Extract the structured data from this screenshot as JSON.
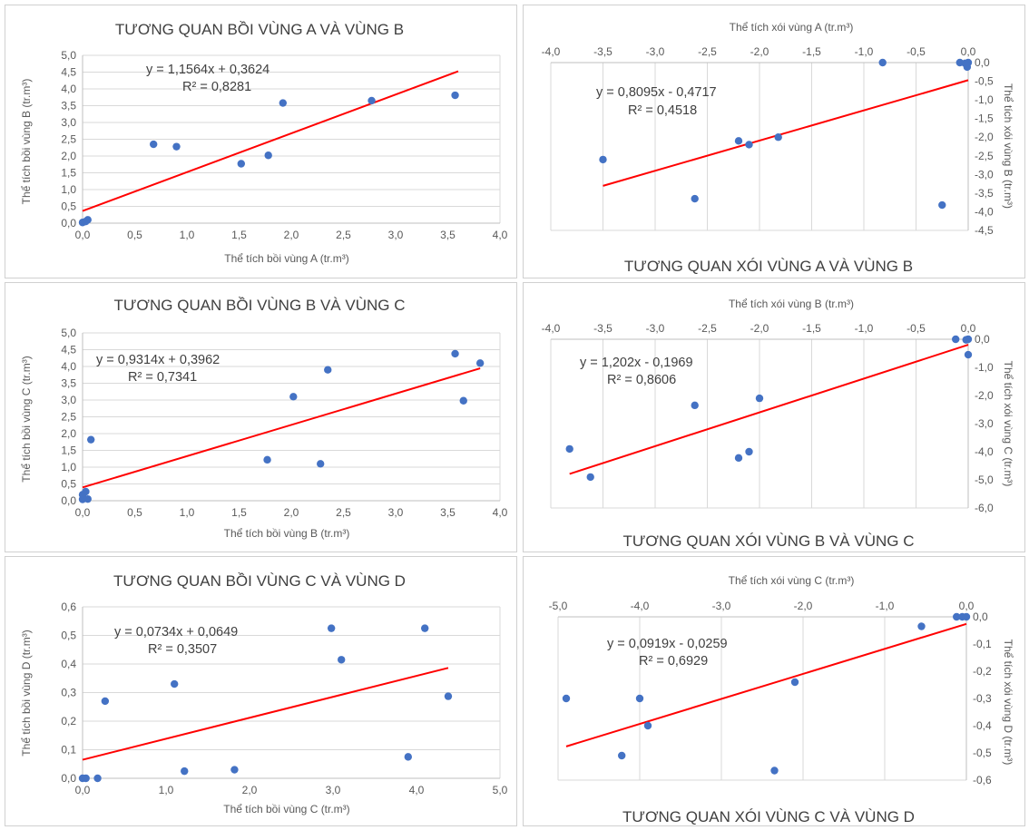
{
  "colors": {
    "point": "#4472c4",
    "trendline": "#ff0000",
    "grid": "#d9d9d9",
    "axis_text": "#595959",
    "title_text": "#404040"
  },
  "chart_data": [
    {
      "type": "scatter",
      "title": "TƯƠNG QUAN BỒI VÙNG A VÀ VÙNG B",
      "xlabel": "Thể tích bồi vùng A (tr.m³)",
      "ylabel": "Thể tích bồi vùng B (tr.m³)",
      "xlim": [
        0,
        4
      ],
      "ylim": [
        0,
        5
      ],
      "xticks": [
        0,
        0.5,
        1,
        1.5,
        2,
        2.5,
        3,
        3.5,
        4
      ],
      "xtick_labels": [
        "0,0",
        "0,5",
        "1,0",
        "1,5",
        "2,0",
        "2,5",
        "3,0",
        "3,5",
        "4,0"
      ],
      "yticks": [
        0,
        0.5,
        1,
        1.5,
        2,
        2.5,
        3,
        3.5,
        4,
        4.5,
        5
      ],
      "ytick_labels": [
        "0,0",
        "0,5",
        "1,0",
        "1,5",
        "2,0",
        "2,5",
        "3,0",
        "3,5",
        "4,0",
        "4,5",
        "5,0"
      ],
      "grid": "horizontal",
      "points": [
        [
          0.0,
          0.02
        ],
        [
          0.03,
          0.05
        ],
        [
          0.05,
          0.1
        ],
        [
          0.68,
          2.35
        ],
        [
          0.9,
          2.28
        ],
        [
          1.52,
          1.77
        ],
        [
          1.78,
          2.02
        ],
        [
          1.92,
          3.58
        ],
        [
          2.77,
          3.65
        ],
        [
          3.57,
          3.81
        ]
      ],
      "trendline": {
        "slope": 1.1564,
        "intercept": 0.3624,
        "x_range": [
          0,
          3.6
        ]
      },
      "equation": "y = 1,1564x + 0,3624",
      "r2": "R² = 0,8281"
    },
    {
      "type": "scatter",
      "title": "TƯƠNG QUAN XÓI VÙNG A VÀ VÙNG B",
      "xlabel": "Thể tích xói vùng A (tr.m³)",
      "ylabel": "Thể tích xói vùng B (tr.m³)",
      "xlim": [
        -4,
        0
      ],
      "ylim": [
        -4.5,
        0
      ],
      "xticks": [
        -4,
        -3.5,
        -3,
        -2.5,
        -2,
        -1.5,
        -1,
        -0.5,
        0
      ],
      "xtick_labels": [
        "-4,0",
        "-3,5",
        "-3,0",
        "-2,5",
        "-2,0",
        "-1,5",
        "-1,0",
        "-0,5",
        "0,0"
      ],
      "yticks": [
        0,
        -0.5,
        -1,
        -1.5,
        -2,
        -2.5,
        -3,
        -3.5,
        -4,
        -4.5
      ],
      "ytick_labels": [
        "0,0",
        "-0,5",
        "-1,0",
        "-1,5",
        "-2,0",
        "-2,5",
        "-3,0",
        "-3,5",
        "-4,0",
        "-4,5"
      ],
      "grid": "vertical",
      "points": [
        [
          -3.5,
          -2.6
        ],
        [
          -2.62,
          -3.65
        ],
        [
          -2.2,
          -2.1
        ],
        [
          -2.1,
          -2.2
        ],
        [
          -1.82,
          -2.0
        ],
        [
          -0.82,
          0.0
        ],
        [
          -0.25,
          -3.82
        ],
        [
          -0.08,
          0.0
        ],
        [
          -0.03,
          -0.02
        ],
        [
          -0.01,
          -0.12
        ],
        [
          0.0,
          0.0
        ]
      ],
      "trendline": {
        "slope": 0.8095,
        "intercept": -0.4717,
        "x_range": [
          -3.5,
          0
        ]
      },
      "equation": "y = 0,8095x - 0,4717",
      "r2": "R² = 0,4518"
    },
    {
      "type": "scatter",
      "title": "TƯƠNG QUAN BỒI VÙNG B VÀ VÙNG C",
      "xlabel": "Thể tích bồi vùng B (tr.m³)",
      "ylabel": "Thể tích bồi vùng C (tr.m³)",
      "xlim": [
        0,
        4
      ],
      "ylim": [
        0,
        5
      ],
      "xticks": [
        0,
        0.5,
        1,
        1.5,
        2,
        2.5,
        3,
        3.5,
        4
      ],
      "xtick_labels": [
        "0,0",
        "0,5",
        "1,0",
        "1,5",
        "2,0",
        "2,5",
        "3,0",
        "3,5",
        "4,0"
      ],
      "yticks": [
        0,
        0.5,
        1,
        1.5,
        2,
        2.5,
        3,
        3.5,
        4,
        4.5,
        5
      ],
      "ytick_labels": [
        "0,0",
        "0,5",
        "1,0",
        "1,5",
        "2,0",
        "2,5",
        "3,0",
        "3,5",
        "4,0",
        "4,5",
        "5,0"
      ],
      "grid": "horizontal",
      "points": [
        [
          0.0,
          0.04
        ],
        [
          0.0,
          0.18
        ],
        [
          0.03,
          0.27
        ],
        [
          0.05,
          0.05
        ],
        [
          0.08,
          1.82
        ],
        [
          1.77,
          1.22
        ],
        [
          2.02,
          3.1
        ],
        [
          2.28,
          1.1
        ],
        [
          2.35,
          3.9
        ],
        [
          3.57,
          4.38
        ],
        [
          3.65,
          2.98
        ],
        [
          3.81,
          4.1
        ]
      ],
      "trendline": {
        "slope": 0.9314,
        "intercept": 0.3962,
        "x_range": [
          0,
          3.81
        ]
      },
      "equation": "y = 0,9314x + 0,3962",
      "r2": "R² = 0,7341"
    },
    {
      "type": "scatter",
      "title": "TƯƠNG QUAN XÓI VÙNG B VÀ VÙNG C",
      "xlabel": "Thể tích xói vùng B (tr.m³)",
      "ylabel": "Thể tích xói vùng C (tr.m³)",
      "xlim": [
        -4,
        0
      ],
      "ylim": [
        -6,
        0
      ],
      "xticks": [
        -4,
        -3.5,
        -3,
        -2.5,
        -2,
        -1.5,
        -1,
        -0.5,
        0
      ],
      "xtick_labels": [
        "-4,0",
        "-3,5",
        "-3,0",
        "-2,5",
        "-2,0",
        "-1,5",
        "-1,0",
        "-0,5",
        "0,0"
      ],
      "yticks": [
        0,
        -1,
        -2,
        -3,
        -4,
        -5,
        -6
      ],
      "ytick_labels": [
        "0,0",
        "-1,0",
        "-2,0",
        "-3,0",
        "-4,0",
        "-5,0",
        "-6,0"
      ],
      "grid": "vertical",
      "points": [
        [
          -3.82,
          -3.9
        ],
        [
          -3.62,
          -4.9
        ],
        [
          -2.62,
          -2.35
        ],
        [
          -2.2,
          -4.22
        ],
        [
          -2.1,
          -4.0
        ],
        [
          -2.0,
          -2.1
        ],
        [
          -0.12,
          0.0
        ],
        [
          -0.02,
          -0.02
        ],
        [
          0.0,
          -0.55
        ],
        [
          0.0,
          0.0
        ]
      ],
      "trendline": {
        "slope": 1.202,
        "intercept": -0.1969,
        "x_range": [
          -3.82,
          0
        ]
      },
      "equation": "y = 1,202x - 0,1969",
      "r2": "R² = 0,8606"
    },
    {
      "type": "scatter",
      "title": "TƯƠNG QUAN BỒI VÙNG C VÀ VÙNG D",
      "xlabel": "Thể tích bồi vùng C (tr.m³)",
      "ylabel": "Thể tích bồi vùng D (tr.m³)",
      "xlim": [
        0,
        5
      ],
      "ylim": [
        0,
        0.6
      ],
      "xticks": [
        0,
        1,
        2,
        3,
        4,
        5
      ],
      "xtick_labels": [
        "0,0",
        "1,0",
        "2,0",
        "3,0",
        "4,0",
        "5,0"
      ],
      "yticks": [
        0,
        0.1,
        0.2,
        0.3,
        0.4,
        0.5,
        0.6
      ],
      "ytick_labels": [
        "0,0",
        "0,1",
        "0,2",
        "0,3",
        "0,4",
        "0,5",
        "0,6"
      ],
      "grid": "horizontal",
      "points": [
        [
          0.0,
          0.0
        ],
        [
          0.04,
          0.0
        ],
        [
          0.18,
          0.0
        ],
        [
          0.27,
          0.27
        ],
        [
          1.1,
          0.33
        ],
        [
          1.22,
          0.025
        ],
        [
          1.82,
          0.03
        ],
        [
          2.98,
          0.525
        ],
        [
          3.1,
          0.415
        ],
        [
          3.9,
          0.075
        ],
        [
          4.1,
          0.525
        ],
        [
          4.38,
          0.287
        ]
      ],
      "trendline": {
        "slope": 0.0734,
        "intercept": 0.0649,
        "x_range": [
          0,
          4.38
        ]
      },
      "equation": "y = 0,0734x + 0,0649",
      "r2": "R² = 0,3507"
    },
    {
      "type": "scatter",
      "title": "TƯƠNG QUAN XÓI VÙNG C VÀ VÙNG D",
      "xlabel": "Thể tích xói vùng C (tr.m³)",
      "ylabel": "Thể tích xói vùng D (tr.m³)",
      "xlim": [
        -5,
        0
      ],
      "ylim": [
        -0.6,
        0
      ],
      "xticks": [
        -5,
        -4,
        -3,
        -2,
        -1,
        0
      ],
      "xtick_labels": [
        "-5,0",
        "-4,0",
        "-3,0",
        "-2,0",
        "-1,0",
        "0,0"
      ],
      "yticks": [
        0,
        -0.1,
        -0.2,
        -0.3,
        -0.4,
        -0.5,
        -0.6
      ],
      "ytick_labels": [
        "0,0",
        "-0,1",
        "-0,2",
        "-0,3",
        "-0,4",
        "-0,5",
        "-0,6"
      ],
      "grid": "vertical",
      "points": [
        [
          -4.9,
          -0.3
        ],
        [
          -4.22,
          -0.51
        ],
        [
          -4.0,
          -0.3
        ],
        [
          -3.9,
          -0.4
        ],
        [
          -2.35,
          -0.565
        ],
        [
          -2.1,
          -0.24
        ],
        [
          -0.55,
          -0.035
        ],
        [
          -0.12,
          0.0
        ],
        [
          -0.05,
          0.0
        ],
        [
          0.0,
          0.0
        ]
      ],
      "trendline": {
        "slope": 0.0919,
        "intercept": -0.0259,
        "x_range": [
          -4.9,
          0
        ]
      },
      "equation": "y = 0,0919x - 0,0259",
      "r2": "R² = 0,6929"
    }
  ]
}
